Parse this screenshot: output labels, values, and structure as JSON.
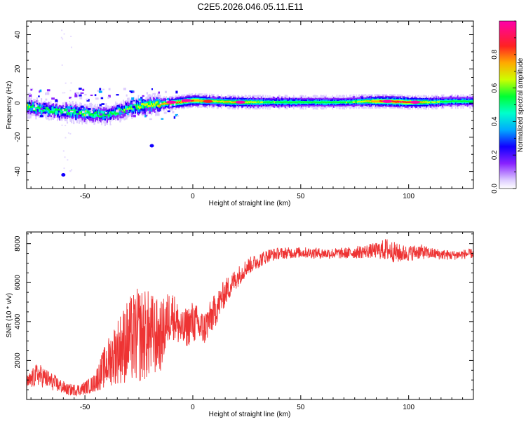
{
  "figure_title": "C2E5.2026.046.05.11.E11",
  "colors": {
    "signal_line": "#ee3333",
    "axis": "#000000",
    "spectrogram_map": [
      "#ffffff",
      "#ddccff",
      "#8822ff",
      "#1100ff",
      "#00aaff",
      "#00ffcc",
      "#00ff33",
      "#ccff00",
      "#ffaa00",
      "#ff2222",
      "#ff00aa"
    ]
  },
  "chart_data": [
    {
      "type": "heatmap",
      "xlabel": "Height of straight line (km)",
      "ylabel": "Frequency (Hz)",
      "xlim": [
        -77,
        130
      ],
      "ylim": [
        -50,
        48
      ],
      "xticks": [
        -50,
        0,
        50,
        100
      ],
      "yticks": [
        -40,
        -20,
        0,
        20,
        40
      ],
      "grid": false,
      "colorbar": {
        "label": "Normalized spectral amplitude",
        "range": [
          0.0,
          1.0
        ],
        "ticks": [
          0.0,
          0.2,
          0.4,
          0.6,
          0.8
        ]
      },
      "ridge": {
        "x": [
          -77,
          -70,
          -60,
          -50,
          -40,
          -30,
          -20,
          -10,
          0,
          10,
          20,
          30,
          50,
          70,
          80,
          90,
          100,
          110,
          120,
          130
        ],
        "frequency": [
          -2,
          -4,
          -5,
          -6,
          -7,
          -3,
          -1,
          0,
          1.5,
          1,
          0.5,
          0.5,
          0.5,
          0.5,
          1,
          1,
          0.5,
          0.5,
          1,
          1
        ],
        "amplitude": [
          0.65,
          0.6,
          0.6,
          0.62,
          0.6,
          0.65,
          0.7,
          0.82,
          0.85,
          0.72,
          0.78,
          0.65,
          0.6,
          0.6,
          0.72,
          0.95,
          0.9,
          0.65,
          0.6,
          0.6
        ]
      },
      "hotspots": [
        {
          "x": -10,
          "frequency": 0.5,
          "amplitude": 1.0
        },
        {
          "x": -3,
          "frequency": 1.5,
          "amplitude": 1.0
        },
        {
          "x": 7,
          "frequency": 1,
          "amplitude": 0.9
        },
        {
          "x": 22,
          "frequency": 0.5,
          "amplitude": 0.95
        },
        {
          "x": 90,
          "frequency": 1,
          "amplitude": 1.0
        },
        {
          "x": 103,
          "frequency": 0.5,
          "amplitude": 1.0
        }
      ],
      "outliers": [
        {
          "x": -60,
          "frequency": -42,
          "amplitude": 0.3
        },
        {
          "x": -19,
          "frequency": -25,
          "amplitude": 0.25
        }
      ]
    },
    {
      "type": "line",
      "xlabel": "Height of straight line (km)",
      "ylabel": "SNR (10 * v/v)",
      "xlim": [
        -77,
        130
      ],
      "ylim": [
        0,
        8600
      ],
      "xticks": [
        -50,
        0,
        50,
        100
      ],
      "yticks": [
        2000,
        4000,
        6000,
        8000
      ],
      "grid": false,
      "series": [
        {
          "x": [
            -77,
            -72,
            -65,
            -58,
            -52,
            -46,
            -40,
            -35,
            -30,
            -25,
            -20,
            -15,
            -10,
            -5,
            0,
            5,
            10,
            15,
            20,
            25,
            30,
            35,
            40,
            50,
            60,
            70,
            80,
            85,
            90,
            95,
            100,
            105,
            110,
            120,
            130
          ],
          "values": [
            800,
            1300,
            900,
            500,
            500,
            800,
            1800,
            2500,
            3000,
            3300,
            3300,
            3200,
            4500,
            3500,
            4000,
            3600,
            4500,
            5500,
            6200,
            6800,
            7100,
            7400,
            7500,
            7550,
            7500,
            7500,
            7600,
            7650,
            7700,
            7500,
            7500,
            7600,
            7500,
            7400,
            7500
          ],
          "noise": [
            400,
            600,
            450,
            300,
            300,
            450,
            1200,
            1700,
            2200,
            2500,
            2300,
            1800,
            1300,
            1000,
            1100,
            900,
            900,
            700,
            550,
            450,
            400,
            350,
            300,
            280,
            280,
            280,
            350,
            400,
            600,
            500,
            400,
            400,
            300,
            250,
            250
          ]
        }
      ]
    }
  ]
}
